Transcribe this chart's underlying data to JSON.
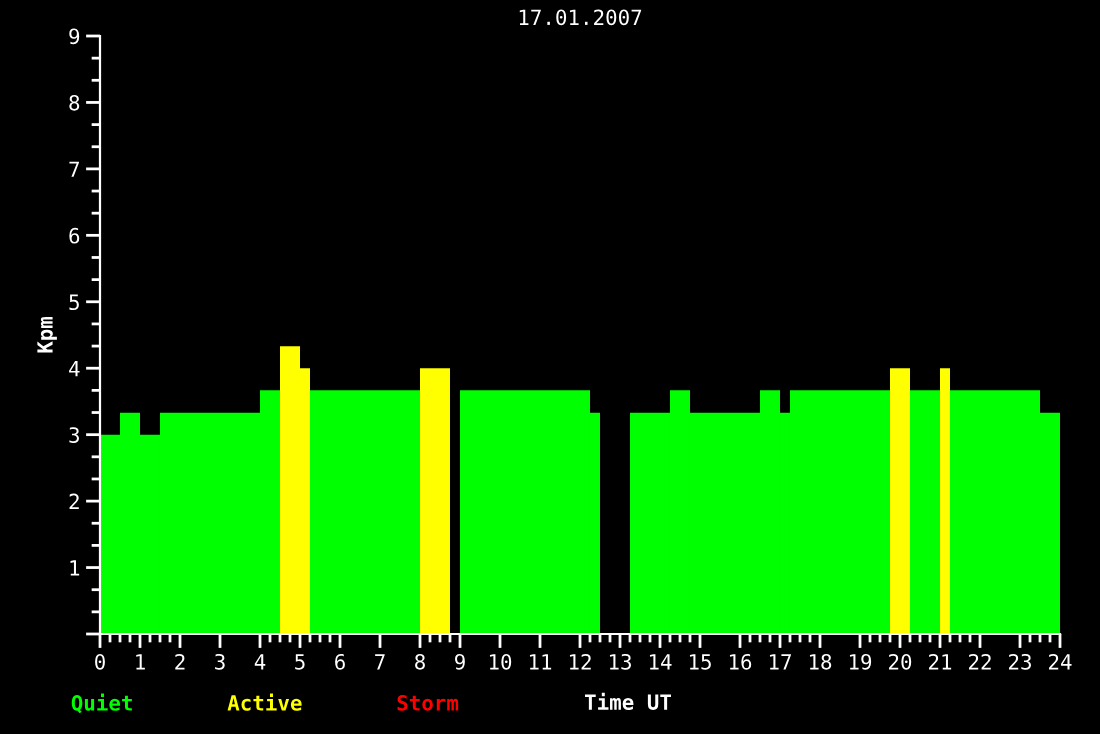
{
  "chart_data": {
    "type": "histogram",
    "title": "17.01.2007",
    "xlabel": "Time UT",
    "ylabel": "Kpm",
    "bins": [
      0,
      0.5,
      1.0,
      1.5,
      4.0,
      4.5,
      5.0,
      5.25,
      8.0,
      8.75,
      9.0,
      12.25,
      12.5,
      13.25,
      14.25,
      14.75,
      16.5,
      17.0,
      17.25,
      19.75,
      20.25,
      21.0,
      21.25,
      23.5,
      24
    ],
    "series": [
      {
        "name": "Quiet",
        "color": "#00ff00",
        "values": [
          3.0,
          3.33,
          3.0,
          3.33,
          3.67,
          null,
          null,
          3.67,
          null,
          null,
          3.67,
          3.33,
          null,
          3.33,
          3.67,
          3.33,
          3.67,
          3.33,
          3.67,
          null,
          3.67,
          null,
          3.67,
          3.33
        ]
      },
      {
        "name": "Active",
        "color": "#ffff00",
        "values": [
          null,
          null,
          null,
          null,
          null,
          4.33,
          4.0,
          null,
          4.0,
          null,
          null,
          null,
          null,
          null,
          null,
          null,
          null,
          null,
          null,
          4.0,
          null,
          4.0,
          null,
          null
        ]
      }
    ],
    "annotations": [
      "Storm"
    ],
    "xlim": [
      0,
      24
    ],
    "xticks": [
      0,
      {
        "value": 0.25,
        "label": null
      },
      {
        "value": 0.5,
        "label": null
      },
      {
        "value": 0.75,
        "label": null
      },
      1,
      {
        "value": 1.25,
        "label": null
      },
      {
        "value": 1.5,
        "label": null
      },
      {
        "value": 1.75,
        "label": null
      },
      2,
      3,
      4,
      {
        "value": 4.25,
        "label": null
      },
      {
        "value": 4.5,
        "label": null
      },
      {
        "value": 4.75,
        "label": null
      },
      5,
      {
        "value": 5.25,
        "label": null
      },
      {
        "value": 5.5,
        "label": null
      },
      {
        "value": 5.75,
        "label": null
      },
      6,
      7,
      8,
      {
        "value": 8.25,
        "label": null
      },
      {
        "value": 8.5,
        "label": null
      },
      {
        "value": 8.75,
        "label": null
      },
      9,
      10,
      11,
      12,
      {
        "value": 12.25,
        "label": null
      },
      {
        "value": 12.5,
        "label": null
      },
      {
        "value": 12.75,
        "label": null
      },
      13,
      {
        "value": 13.25,
        "label": null
      },
      {
        "value": 13.5,
        "label": null
      },
      {
        "value": 13.75,
        "label": null
      },
      14,
      {
        "value": 14.25,
        "label": null
      },
      {
        "value": 14.5,
        "label": null
      },
      {
        "value": 14.75,
        "label": null
      },
      15,
      16,
      {
        "value": 16.25,
        "label": null
      },
      {
        "value": 16.5,
        "label": null
      },
      {
        "value": 16.75,
        "label": null
      },
      17,
      {
        "value": 17.25,
        "label": null
      },
      {
        "value": 17.5,
        "label": null
      },
      {
        "value": 17.75,
        "label": null
      },
      18,
      19,
      {
        "value": 19.25,
        "label": null
      },
      {
        "value": 19.5,
        "label": null
      },
      {
        "value": 19.75,
        "label": null
      },
      20,
      {
        "value": 20.25,
        "label": null
      },
      {
        "value": 20.5,
        "label": null
      },
      {
        "value": 20.75,
        "label": null
      },
      21,
      {
        "value": 21.25,
        "label": null
      },
      {
        "value": 21.5,
        "label": null
      },
      {
        "value": 21.75,
        "label": null
      },
      22,
      23,
      {
        "value": 23.25,
        "label": null
      },
      {
        "value": 23.5,
        "label": null
      },
      {
        "value": 23.75,
        "label": null
      },
      24
    ],
    "ylim": [
      0,
      9
    ],
    "yticks": [
      {
        "value": 0,
        "label": null
      },
      1,
      2,
      3,
      4,
      5,
      6,
      7,
      8,
      9
    ],
    "legend": "bottom left",
    "grid": false
  }
}
